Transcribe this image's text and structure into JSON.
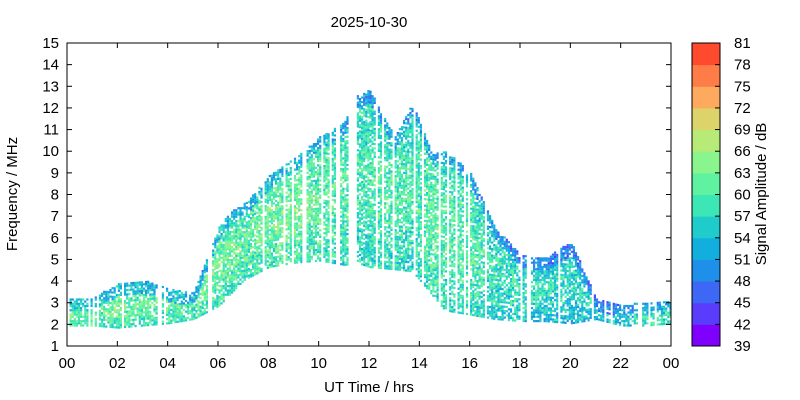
{
  "chart_data": {
    "type": "heatmap",
    "title": "2025-10-30",
    "xlabel": "UT Time / hrs",
    "ylabel": "Frequency / MHz",
    "xlim": [
      0,
      24
    ],
    "ylim": [
      1,
      15
    ],
    "x_ticks": [
      "00",
      "02",
      "04",
      "06",
      "08",
      "10",
      "12",
      "14",
      "16",
      "18",
      "20",
      "22",
      "00"
    ],
    "y_ticks": [
      "1",
      "2",
      "3",
      "4",
      "5",
      "6",
      "7",
      "8",
      "9",
      "10",
      "11",
      "12",
      "13",
      "14",
      "15"
    ],
    "colorbar": {
      "label": "Signal Amplitude / dB",
      "range": [
        39,
        81
      ],
      "ticks": [
        "39",
        "42",
        "45",
        "48",
        "51",
        "54",
        "57",
        "60",
        "63",
        "66",
        "69",
        "72",
        "75",
        "78",
        "81"
      ],
      "colors": [
        "#7f00ff",
        "#5a3cfc",
        "#3d67f5",
        "#1e90ea",
        "#11aede",
        "#20cccb",
        "#3de6b5",
        "#5ef2a1",
        "#8af58c",
        "#b8ea77",
        "#dcd36a",
        "#fdaa5e",
        "#fd7c47",
        "#ff4a2e",
        "#ff0000"
      ]
    },
    "grid": false,
    "band_envelope": [
      {
        "t": 0.0,
        "low": 1.9,
        "high": 3.1,
        "amp": 58
      },
      {
        "t": 1.0,
        "low": 1.9,
        "high": 3.2,
        "amp": 57
      },
      {
        "t": 2.0,
        "low": 1.8,
        "high": 3.8,
        "amp": 58
      },
      {
        "t": 3.0,
        "low": 1.9,
        "high": 4.0,
        "amp": 57
      },
      {
        "t": 4.0,
        "low": 2.0,
        "high": 3.6,
        "amp": 57
      },
      {
        "t": 5.0,
        "low": 2.2,
        "high": 3.4,
        "amp": 56
      },
      {
        "t": 6.0,
        "low": 2.8,
        "high": 6.4,
        "amp": 58
      },
      {
        "t": 6.5,
        "low": 3.4,
        "high": 7.2,
        "amp": 57
      },
      {
        "t": 7.0,
        "low": 4.0,
        "high": 7.5,
        "amp": 57
      },
      {
        "t": 8.0,
        "low": 4.6,
        "high": 8.8,
        "amp": 58
      },
      {
        "t": 9.0,
        "low": 4.8,
        "high": 9.6,
        "amp": 58
      },
      {
        "t": 10.0,
        "low": 4.9,
        "high": 10.6,
        "amp": 57
      },
      {
        "t": 11.0,
        "low": 4.7,
        "high": 11.3,
        "amp": 56
      },
      {
        "t": 11.5,
        "low": 4.8,
        "high": 12.5,
        "amp": 55
      },
      {
        "t": 12.0,
        "low": 4.6,
        "high": 12.8,
        "amp": 55
      },
      {
        "t": 13.0,
        "low": 4.5,
        "high": 10.6,
        "amp": 56
      },
      {
        "t": 13.7,
        "low": 4.4,
        "high": 12.2,
        "amp": 55
      },
      {
        "t": 14.5,
        "low": 3.3,
        "high": 9.8,
        "amp": 57
      },
      {
        "t": 15.0,
        "low": 2.6,
        "high": 10.0,
        "amp": 56
      },
      {
        "t": 16.0,
        "low": 2.4,
        "high": 9.0,
        "amp": 56
      },
      {
        "t": 17.0,
        "low": 2.2,
        "high": 6.4,
        "amp": 54
      },
      {
        "t": 18.0,
        "low": 2.1,
        "high": 5.2,
        "amp": 53
      },
      {
        "t": 19.0,
        "low": 2.1,
        "high": 5.0,
        "amp": 53
      },
      {
        "t": 20.0,
        "low": 2.0,
        "high": 5.8,
        "amp": 52
      },
      {
        "t": 21.0,
        "low": 2.2,
        "high": 3.2,
        "amp": 52
      },
      {
        "t": 22.0,
        "low": 1.9,
        "high": 2.8,
        "amp": 53
      },
      {
        "t": 23.0,
        "low": 1.9,
        "high": 3.0,
        "amp": 55
      },
      {
        "t": 24.0,
        "low": 2.0,
        "high": 3.1,
        "amp": 56
      }
    ]
  }
}
